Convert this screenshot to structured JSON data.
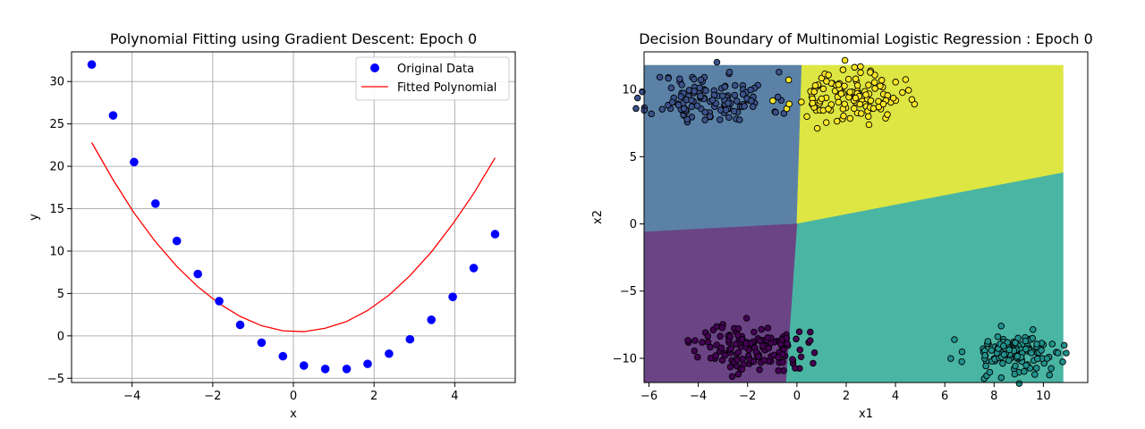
{
  "colors": {
    "scatter": "#0000ff",
    "fit": "#ff0000",
    "region_top_left": "#5b82a6",
    "region_top_right": "#dde642",
    "region_bottom_left": "#6a4485",
    "region_bottom_right": "#4ab5a3",
    "pt_top_left": "#3b528b",
    "pt_top_right": "#fde725",
    "pt_bottom_left": "#440154",
    "pt_bottom_right": "#21918c",
    "grid": "#b0b0b0"
  },
  "chart_data": [
    {
      "type": "scatter",
      "title": "Polynomial Fitting using Gradient Descent: Epoch 0",
      "xlabel": "x",
      "ylabel": "y",
      "xlim": [
        -5.5,
        5.5
      ],
      "ylim": [
        -5.5,
        33.5
      ],
      "xticks": [
        -4,
        -2,
        0,
        2,
        4
      ],
      "xtick_labels": [
        "−4",
        "−2",
        "0",
        "2",
        "4"
      ],
      "yticks": [
        -5,
        0,
        5,
        10,
        15,
        20,
        25,
        30
      ],
      "ytick_labels": [
        "−5",
        "0",
        "5",
        "10",
        "15",
        "20",
        "25",
        "30"
      ],
      "grid": true,
      "legend": {
        "position": "top-right",
        "entries": [
          "Original Data",
          "Fitted Polynomial"
        ]
      },
      "series": [
        {
          "name": "Original Data",
          "kind": "scatter",
          "x": [
            -5.0,
            -4.47,
            -3.95,
            -3.42,
            -2.89,
            -2.37,
            -1.84,
            -1.32,
            -0.79,
            -0.26,
            0.26,
            0.79,
            1.32,
            1.84,
            2.37,
            2.89,
            3.42,
            3.95,
            4.47,
            5.0
          ],
          "y": [
            32.0,
            26.0,
            20.5,
            15.6,
            11.2,
            7.3,
            4.1,
            1.3,
            -0.8,
            -2.4,
            -3.5,
            -3.9,
            -3.9,
            -3.3,
            -2.1,
            -0.4,
            1.9,
            4.6,
            8.0,
            12.0
          ]
        },
        {
          "name": "Fitted Polynomial",
          "kind": "line",
          "x": [
            -5.0,
            -4.47,
            -3.95,
            -3.42,
            -2.89,
            -2.37,
            -1.84,
            -1.32,
            -0.79,
            -0.26,
            0.26,
            0.79,
            1.32,
            1.84,
            2.37,
            2.89,
            3.42,
            3.95,
            4.47,
            5.0
          ],
          "y": [
            22.8,
            18.4,
            14.5,
            11.1,
            8.2,
            5.8,
            3.8,
            2.3,
            1.2,
            0.6,
            0.5,
            0.9,
            1.7,
            3.0,
            4.8,
            7.1,
            9.9,
            13.2,
            16.8,
            21.0
          ]
        }
      ]
    },
    {
      "type": "scatter",
      "title": "Decision Boundary of Multinomial Logistic Regression : Epoch 0",
      "xlabel": "x1",
      "ylabel": "x2",
      "xlim": [
        -6.2,
        11.8
      ],
      "ylim": [
        -11.8,
        12.8
      ],
      "xticks": [
        -6,
        -4,
        -2,
        0,
        2,
        4,
        6,
        8,
        10
      ],
      "xtick_labels": [
        "−6",
        "−4",
        "−2",
        "0",
        "2",
        "4",
        "6",
        "8",
        "10"
      ],
      "yticks": [
        -10,
        -5,
        0,
        5,
        10
      ],
      "ytick_labels": [
        "−10",
        "−5",
        "0",
        "5",
        "10"
      ],
      "grid": false,
      "mesh_extent": {
        "x": [
          -6.2,
          10.8
        ],
        "y": [
          -11.8,
          11.8
        ]
      },
      "decision_boundary": {
        "center": [
          0.0,
          0.0
        ],
        "rays": {
          "up_end": [
            0.2,
            11.8
          ],
          "down_end": [
            -0.45,
            -11.8
          ],
          "right_end": [
            10.8,
            3.8
          ],
          "left_end": [
            -6.2,
            -0.6
          ]
        }
      },
      "clusters": [
        {
          "name": "top-left",
          "center": [
            -3.5,
            9.3
          ],
          "spread": [
            1.2,
            1.0
          ],
          "n": 130,
          "color_key": "pt_top_left",
          "seed": 11
        },
        {
          "name": "top-right",
          "center": [
            2.0,
            9.4
          ],
          "spread": [
            1.1,
            0.9
          ],
          "n": 130,
          "color_key": "pt_top_right",
          "seed": 23
        },
        {
          "name": "bottom-left",
          "center": [
            -1.8,
            -9.2
          ],
          "spread": [
            1.1,
            0.9
          ],
          "n": 140,
          "color_key": "pt_bottom_left",
          "seed": 37
        },
        {
          "name": "bottom-right",
          "center": [
            8.9,
            -9.6
          ],
          "spread": [
            1.0,
            0.8
          ],
          "n": 130,
          "color_key": "pt_bottom_right",
          "seed": 53
        }
      ]
    }
  ]
}
